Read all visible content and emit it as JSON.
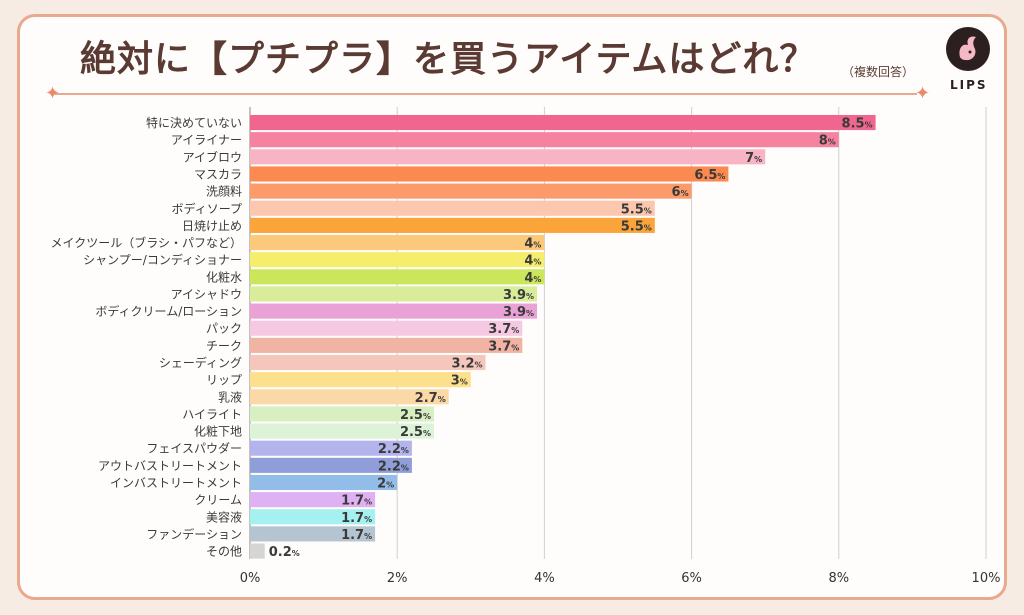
{
  "header": {
    "title": "絶対に【プチプラ】を買うアイテムはどれ？",
    "subtitle": "（複数回答）",
    "logo_text": "LIPS"
  },
  "colors": {
    "frame": "#e9a98e",
    "title_text": "#5a3a33",
    "label_text": "#3a3a3a"
  },
  "chart_data": {
    "type": "bar",
    "orientation": "horizontal",
    "categories": [
      "特に決めていない",
      "アイライナー",
      "アイブロウ",
      "マスカラ",
      "洗顔料",
      "ボディソープ",
      "日焼け止め",
      "メイクツール（ブラシ・パフなど）",
      "シャンプー/コンディショナー",
      "化粧水",
      "アイシャドウ",
      "ボディクリーム/ローション",
      "パック",
      "チーク",
      "シェーディング",
      "リップ",
      "乳液",
      "ハイライト",
      "化粧下地",
      "フェイスパウダー",
      "アウトバストリートメント",
      "インバストリートメント",
      "クリーム",
      "美容液",
      "ファンデーション",
      "その他"
    ],
    "values": [
      8.5,
      8,
      7,
      6.5,
      6,
      5.5,
      5.5,
      4,
      4,
      4,
      3.9,
      3.9,
      3.7,
      3.7,
      3.2,
      3,
      2.7,
      2.5,
      2.5,
      2.2,
      2.2,
      2,
      1.7,
      1.7,
      1.7,
      0.2
    ],
    "value_labels": [
      "8.5",
      "8",
      "7",
      "6.5",
      "6",
      "5.5",
      "5.5",
      "4",
      "4",
      "4",
      "3.9",
      "3.9",
      "3.7",
      "3.7",
      "3.2",
      "3",
      "2.7",
      "2.5",
      "2.5",
      "2.2",
      "2.2",
      "2",
      "1.7",
      "1.7",
      "1.7",
      "0.2"
    ],
    "value_unit": "%",
    "bar_colors": [
      "#f0668f",
      "#f5829f",
      "#f8b3c5",
      "#fa8a4f",
      "#fb9b6b",
      "#fbc7ae",
      "#fba43a",
      "#fcc87a",
      "#f5ee6d",
      "#cbe65a",
      "#d9ec99",
      "#eaa1d5",
      "#f5c9e2",
      "#f1b3a3",
      "#f5c6bb",
      "#fde08c",
      "#fbd9a6",
      "#d8f0c1",
      "#dcf3d7",
      "#b4b4ec",
      "#8f9ed9",
      "#93bde9",
      "#dfb0f2",
      "#a5f0f0",
      "#b5c4d1",
      "#d5d5d5"
    ],
    "xlim": [
      0,
      10
    ],
    "x_ticks": [
      "0%",
      "2%",
      "4%",
      "6%",
      "8%",
      "10%"
    ],
    "grid": true
  }
}
